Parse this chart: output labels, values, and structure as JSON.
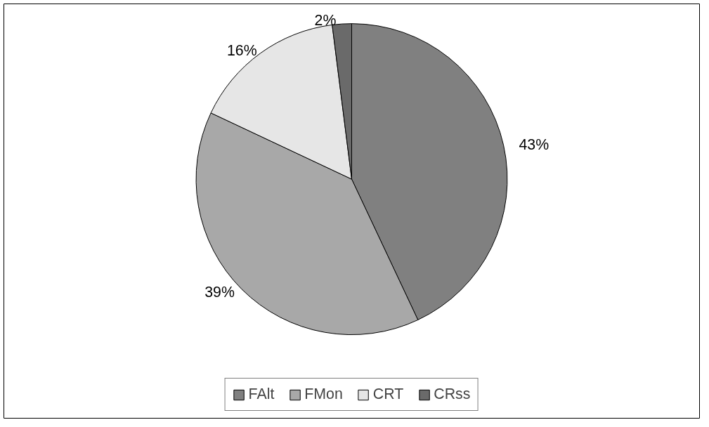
{
  "chart_data": {
    "type": "pie",
    "categories": [
      "FAlt",
      "FMon",
      "CRT",
      "CRss"
    ],
    "values": [
      43,
      39,
      16,
      2
    ],
    "colors": [
      "#808080",
      "#a8a8a8",
      "#e6e6e6",
      "#6a6a6a"
    ],
    "value_labels": [
      "43%",
      "39%",
      "16%",
      "2%"
    ],
    "legend": "bottom"
  }
}
